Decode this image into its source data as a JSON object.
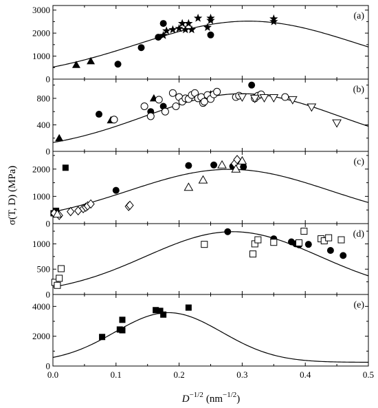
{
  "chart_data": {
    "type": "scatter",
    "x_axis": {
      "label_main": "D",
      "label_exp": "−1/2",
      "label_unit": "(nm",
      "label_unit_exp": "−1/2",
      "label_close": ")",
      "range": [
        0,
        0.5
      ],
      "ticks": [
        0.0,
        0.1,
        0.2,
        0.3,
        0.4,
        0.5
      ],
      "tick_labels": [
        "0.0",
        "0.1",
        "0.2",
        "0.3",
        "0.4",
        "0.5"
      ]
    },
    "y_axis_label": "σ(T, D) (MPa)",
    "panels": [
      {
        "letter": "(a)",
        "ylim": [
          0,
          3200
        ],
        "yticks": [
          0,
          1000,
          2000,
          3000
        ],
        "ytick_labels": [
          "0",
          "1000",
          "2000",
          "3000"
        ],
        "series": [
          {
            "marker": "triangle-filled",
            "x": [
              0.037,
              0.06
            ],
            "y": [
              620,
              780
            ]
          },
          {
            "marker": "circle-filled",
            "x": [
              0.103,
              0.14,
              0.167,
              0.175,
              0.25
            ],
            "y": [
              650,
              1370,
              1820,
              2420,
              1920
            ]
          },
          {
            "marker": "star",
            "x": [
              0.175,
              0.18,
              0.19,
              0.2,
              0.205,
              0.21,
              0.215,
              0.22,
              0.23,
              0.245,
              0.25,
              0.25,
              0.35,
              0.35
            ],
            "y": [
              1900,
              2100,
              2150,
              2200,
              2420,
              2150,
              2420,
              2150,
              2650,
              2250,
              2550,
              2650,
              2620,
              2500
            ]
          }
        ],
        "curve": {
          "type": "gaussian",
          "peak_x": 0.31,
          "peak_y": 2520,
          "sigma": 0.175
        }
      },
      {
        "letter": "(b)",
        "ylim": [
          0,
          1090
        ],
        "yticks": [
          0,
          400,
          800
        ],
        "ytick_labels": [
          "0",
          "400",
          "800"
        ],
        "series": [
          {
            "marker": "triangle-filled",
            "x": [
              0.01,
              0.092,
              0.16,
              0.245,
              0.25
            ],
            "y": [
              200,
              470,
              800,
              830,
              860
            ]
          },
          {
            "marker": "circle-filled",
            "x": [
              0.073,
              0.155,
              0.175,
              0.315
            ],
            "y": [
              560,
              600,
              680,
              1000
            ]
          },
          {
            "marker": "circle-open",
            "x": [
              0.097,
              0.145,
              0.155,
              0.168,
              0.178,
              0.19,
              0.195,
              0.2,
              0.205,
              0.21,
              0.215,
              0.22,
              0.225,
              0.23,
              0.235,
              0.238,
              0.24,
              0.245,
              0.25,
              0.255,
              0.26,
              0.29,
              0.295,
              0.32,
              0.325,
              0.33,
              0.368
            ],
            "y": [
              480,
              680,
              530,
              780,
              600,
              880,
              680,
              820,
              750,
              800,
              790,
              850,
              880,
              800,
              820,
              730,
              750,
              850,
              790,
              860,
              900,
              820,
              840,
              800,
              840,
              860,
              820
            ]
          },
          {
            "marker": "triangle-down-open",
            "x": [
              0.3,
              0.32,
              0.335,
              0.35,
              0.38,
              0.41,
              0.45
            ],
            "y": [
              820,
              800,
              810,
              810,
              780,
              670,
              430
            ]
          }
        ],
        "curve": {
          "type": "gaussian",
          "peak_x": 0.3,
          "peak_y": 870,
          "sigma": 0.155
        }
      },
      {
        "letter": "(c)",
        "ylim": [
          0,
          2650
        ],
        "yticks": [
          0,
          1000,
          2000
        ],
        "ytick_labels": [
          "0",
          "1000",
          "2000"
        ],
        "series": [
          {
            "marker": "square-filled",
            "x": [
              0.001,
              0.005,
              0.02
            ],
            "y": [
              380,
              470,
              2050
            ]
          },
          {
            "marker": "circle-filled",
            "x": [
              0.1,
              0.215,
              0.255,
              0.285,
              0.302
            ],
            "y": [
              1220,
              2130,
              2150,
              2100,
              2080
            ]
          },
          {
            "marker": "diamond-open",
            "x": [
              0.002,
              0.01,
              0.028,
              0.04,
              0.048,
              0.052,
              0.055,
              0.06,
              0.12,
              0.122,
              0.288,
              0.292
            ],
            "y": [
              380,
              300,
              440,
              470,
              550,
              600,
              650,
              720,
              630,
              670,
              2200,
              2350
            ]
          },
          {
            "marker": "triangle-open",
            "x": [
              0.007,
              0.215,
              0.238,
              0.268,
              0.29,
              0.3
            ],
            "y": [
              350,
              1330,
              1600,
              2150,
              2000,
              2300
            ]
          }
        ],
        "curve": {
          "type": "gaussian",
          "peak_x": 0.28,
          "peak_y": 1990,
          "sigma": 0.16
        }
      },
      {
        "letter": "(d)",
        "ylim": [
          0,
          1400
        ],
        "yticks": [
          0,
          500,
          1000
        ],
        "ytick_labels": [
          "0",
          "500",
          "1000"
        ],
        "series": [
          {
            "marker": "circle-filled",
            "x": [
              0.277,
              0.35,
              0.378,
              0.385,
              0.39,
              0.405,
              0.44,
              0.46
            ],
            "y": [
              1240,
              1100,
              1040,
              1000,
              980,
              990,
              870,
              770
            ]
          },
          {
            "marker": "square-open",
            "x": [
              0.003,
              0.007,
              0.01,
              0.013,
              0.24,
              0.317,
              0.32,
              0.325,
              0.35,
              0.39,
              0.398,
              0.425,
              0.43,
              0.437,
              0.457
            ],
            "y": [
              240,
              180,
              320,
              510,
              990,
              800,
              1000,
              1080,
              1030,
              1020,
              1250,
              1100,
              1060,
              1120,
              1080
            ]
          }
        ],
        "curve": {
          "type": "gaussian",
          "peak_x": 0.285,
          "peak_y": 1240,
          "sigma": 0.138
        }
      },
      {
        "letter": "(e)",
        "ylim": [
          0,
          4800
        ],
        "yticks": [
          0,
          2000,
          4000
        ],
        "ytick_labels": [
          "0",
          "2000",
          "4000"
        ],
        "series": [
          {
            "marker": "square-filled",
            "x": [
              0.078,
              0.106,
              0.11,
              0.11,
              0.163,
              0.17,
              0.175,
              0.215
            ],
            "y": [
              1950,
              2450,
              2400,
              3100,
              3750,
              3700,
              3450,
              3920
            ]
          }
        ],
        "curve": {
          "type": "gaussian",
          "peak_x": 0.183,
          "peak_y": 3580,
          "sigma": 0.085,
          "baseline": 250
        }
      }
    ]
  }
}
